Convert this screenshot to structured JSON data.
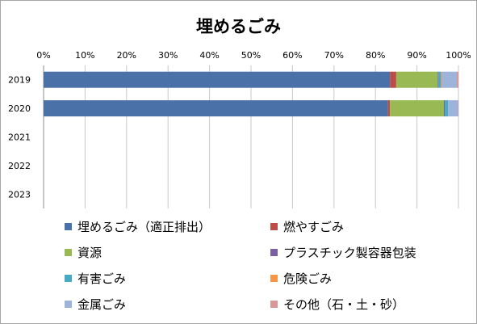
{
  "chart_data": {
    "type": "bar",
    "orientation": "horizontal",
    "stacked": "percent",
    "title": "埋めるごみ",
    "xlabel": "",
    "ylabel": "",
    "xlim": [
      0,
      100
    ],
    "x_ticks": [
      "0%",
      "10%",
      "20%",
      "30%",
      "40%",
      "50%",
      "60%",
      "70%",
      "80%",
      "90%",
      "100%"
    ],
    "categories": [
      "2019",
      "2020",
      "2021",
      "2022",
      "2023"
    ],
    "series": [
      {
        "name": "埋めるごみ（適正排出）",
        "color": "#4a72a8",
        "values": [
          83.5,
          83.0,
          null,
          null,
          null
        ]
      },
      {
        "name": "燃やすごみ",
        "color": "#be4b48",
        "values": [
          1.5,
          0.5,
          null,
          null,
          null
        ]
      },
      {
        "name": "資源",
        "color": "#98b954",
        "values": [
          10.0,
          13.0,
          null,
          null,
          null
        ]
      },
      {
        "name": "プラスチック製容器包装",
        "color": "#7c5f9e",
        "values": [
          0.2,
          0.2,
          null,
          null,
          null
        ]
      },
      {
        "name": "有害ごみ",
        "color": "#46aac5",
        "values": [
          0.6,
          0.8,
          null,
          null,
          null
        ]
      },
      {
        "name": "危険ごみ",
        "color": "#f79646",
        "values": [
          0.2,
          0.0,
          null,
          null,
          null
        ]
      },
      {
        "name": "金属ごみ",
        "color": "#9db3d9",
        "values": [
          3.6,
          2.4,
          null,
          null,
          null
        ]
      },
      {
        "name": "その他（石・土・砂）",
        "color": "#d99795",
        "values": [
          0.4,
          0.1,
          null,
          null,
          null
        ]
      }
    ],
    "grid": true,
    "legend_position": "bottom"
  }
}
